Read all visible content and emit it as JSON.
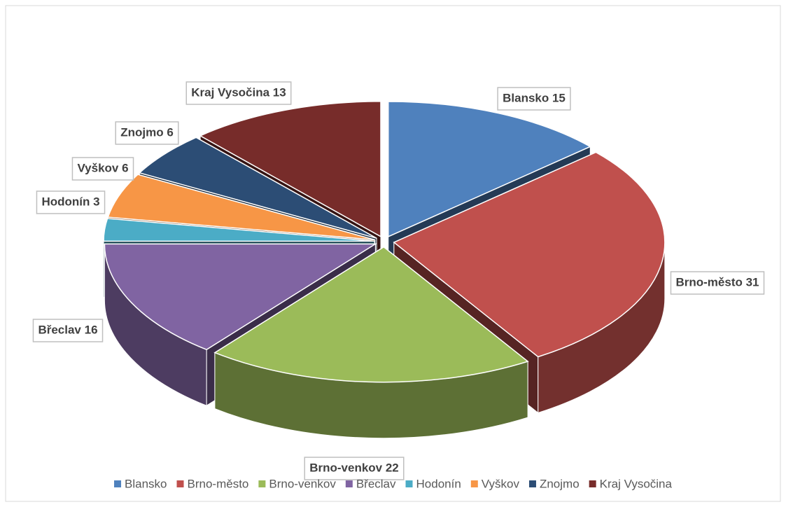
{
  "chart_data": {
    "type": "pie3d",
    "categories": [
      "Blansko",
      "Brno-město",
      "Brno-venkov",
      "Břeclav",
      "Hodonín",
      "Vyškov",
      "Znojmo",
      "Kraj Vysočina"
    ],
    "values": [
      15,
      31,
      22,
      16,
      3,
      6,
      6,
      13
    ],
    "value_labels": [
      "Blansko 15",
      "Brno-město 31",
      "Brno-venkov 22",
      "Břeclav 16",
      "Hodonín 3",
      "Vyškov 6",
      "Znojmo 6",
      "Kraj Vysočina 13"
    ],
    "colors": [
      "#4f81bd",
      "#c0504d",
      "#9bbb59",
      "#8064a2",
      "#4bacc6",
      "#f79646",
      "#2c4d75",
      "#772c2a"
    ],
    "legend": "bottom"
  }
}
